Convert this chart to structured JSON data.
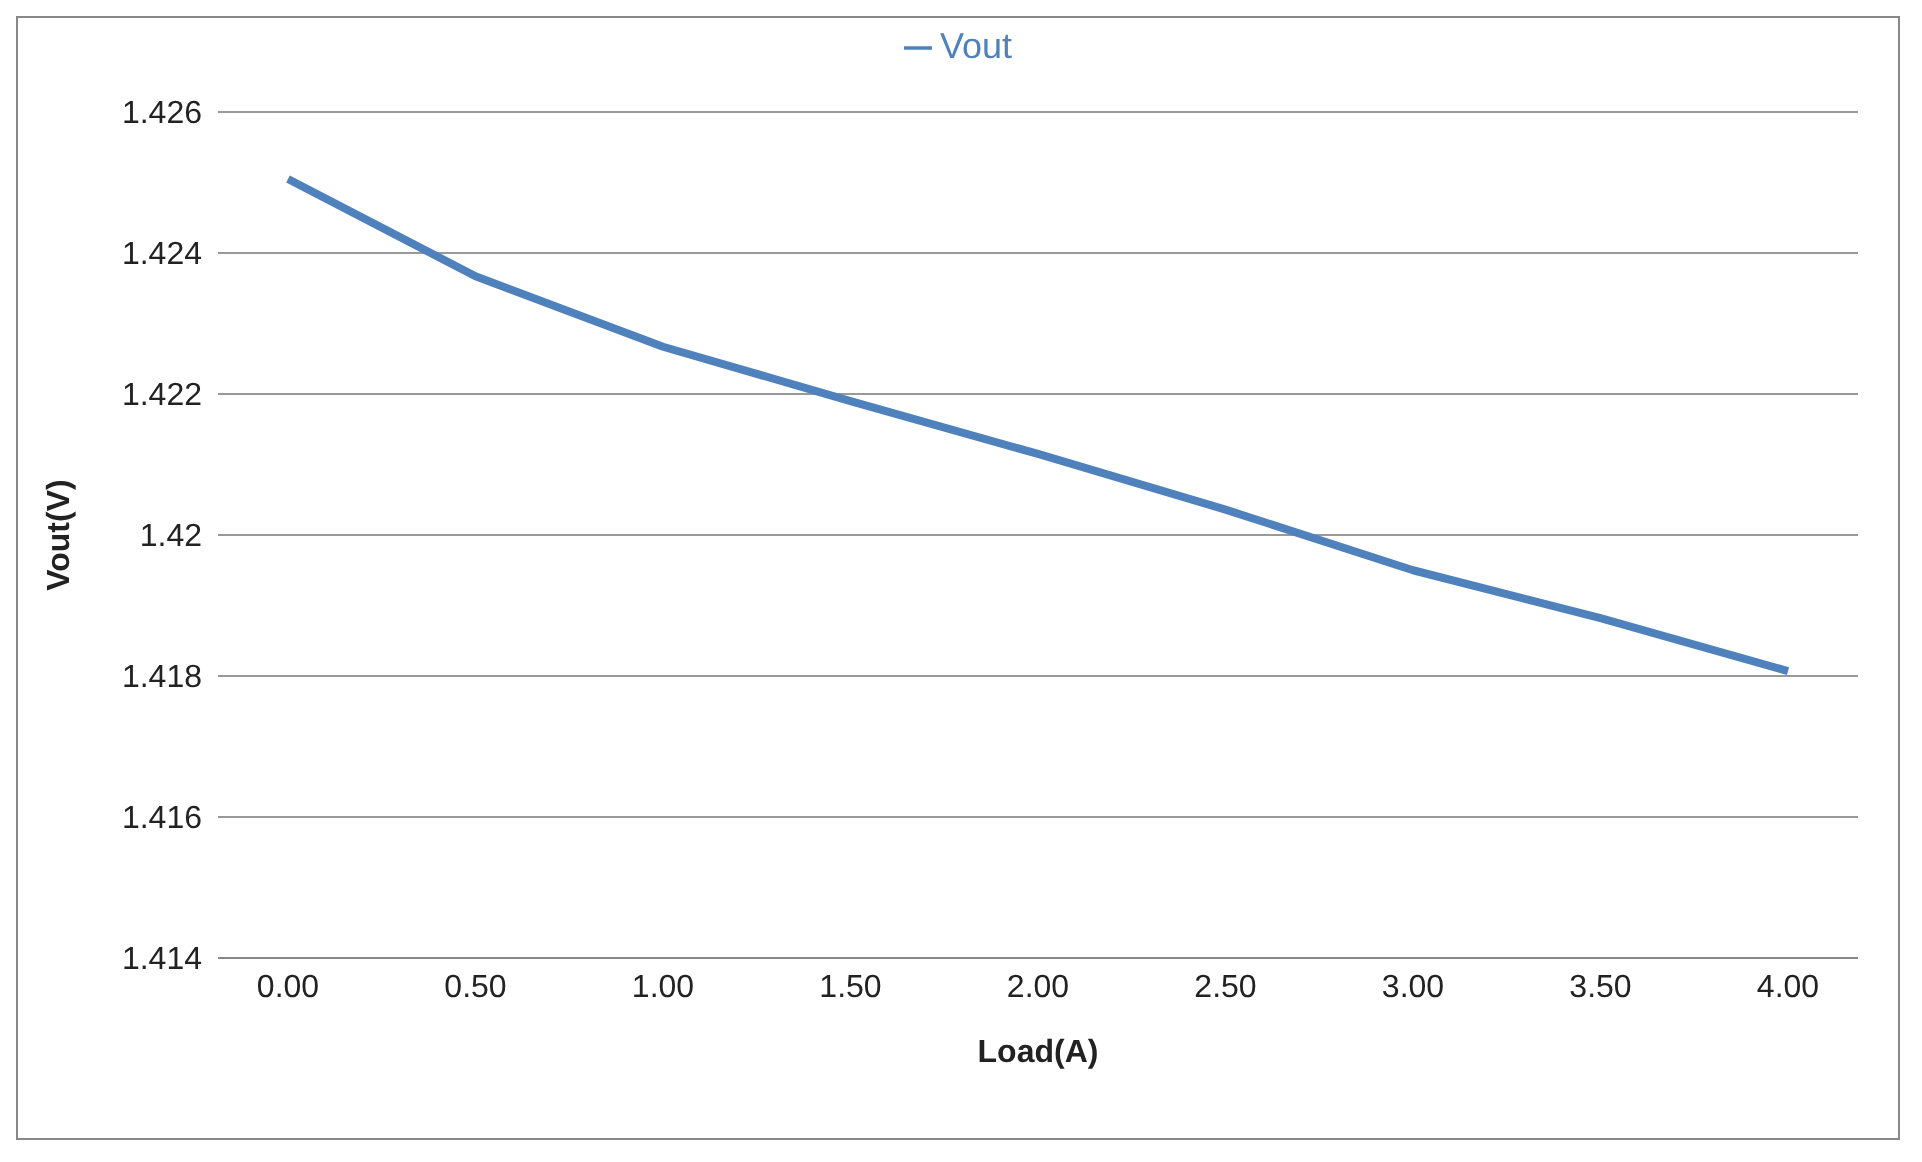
{
  "chart_data": {
    "type": "line",
    "xlabel": "Load(A)",
    "ylabel": "Vout(V)",
    "categories": [
      "0.00",
      "0.50",
      "1.00",
      "1.50",
      "2.00",
      "2.50",
      "3.00",
      "3.50",
      "4.00"
    ],
    "series": [
      {
        "name": "Vout",
        "color": "#4f81bd",
        "values": [
          1.42505,
          1.42367,
          1.42267,
          1.4219,
          1.42115,
          1.42036,
          1.4195,
          1.41882,
          1.41807
        ]
      }
    ],
    "ylim": [
      1.414,
      1.426
    ],
    "yticks": [
      1.414,
      1.416,
      1.418,
      1.42,
      1.422,
      1.424,
      1.426
    ],
    "grid": "y",
    "legend": "top",
    "marker": "none",
    "line_style": "solid"
  }
}
